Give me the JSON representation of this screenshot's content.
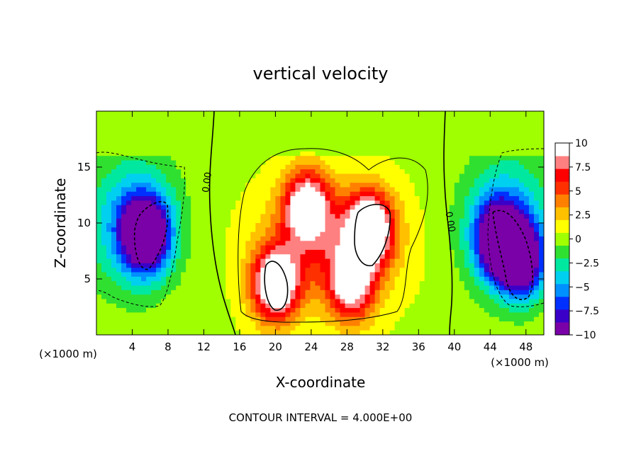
{
  "chart_data": {
    "type": "heatmap",
    "title": "vertical velocity",
    "xlabel": "X-coordinate",
    "ylabel": "Z-coordinate",
    "x_units_left": "(×1000 m)",
    "x_units_right": "(×1000 m)",
    "xlim": [
      0,
      50
    ],
    "ylim": [
      0,
      20
    ],
    "x_ticks": [
      4,
      8,
      12,
      16,
      20,
      24,
      28,
      32,
      36,
      40,
      44,
      48
    ],
    "y_ticks": [
      5,
      10,
      15
    ],
    "colorbar": {
      "ticks": [
        "10",
        "7.5",
        "5",
        "2.5",
        "0",
        "−2.5",
        "−5",
        "−7.5",
        "−10"
      ],
      "range": [
        -10,
        10
      ],
      "colors": [
        "#7a00a8",
        "#3a00c8",
        "#0030ff",
        "#0090ff",
        "#00d0f0",
        "#00e8a0",
        "#30e030",
        "#a0ff00",
        "#ffff00",
        "#ffc000",
        "#ff8000",
        "#ff3000",
        "#ff0000",
        "#ff8080",
        "#ffffff"
      ]
    },
    "contour_labels": [
      "0.00",
      "0.00"
    ],
    "footer": "CONTOUR INTERVAL = 4.000E+00",
    "features": [
      {
        "x": 5.5,
        "z": 9.0,
        "w": -12
      },
      {
        "x": 45.0,
        "z": 8.5,
        "w": -11
      },
      {
        "x": 47.5,
        "z": 6.5,
        "w": -10
      },
      {
        "x": 20.0,
        "z": 4.5,
        "w": 12
      },
      {
        "x": 30.5,
        "z": 9.5,
        "w": 12
      },
      {
        "x": 23.5,
        "z": 11.5,
        "w": 10
      },
      {
        "x": 28.5,
        "z": 4.5,
        "w": 9
      }
    ]
  }
}
